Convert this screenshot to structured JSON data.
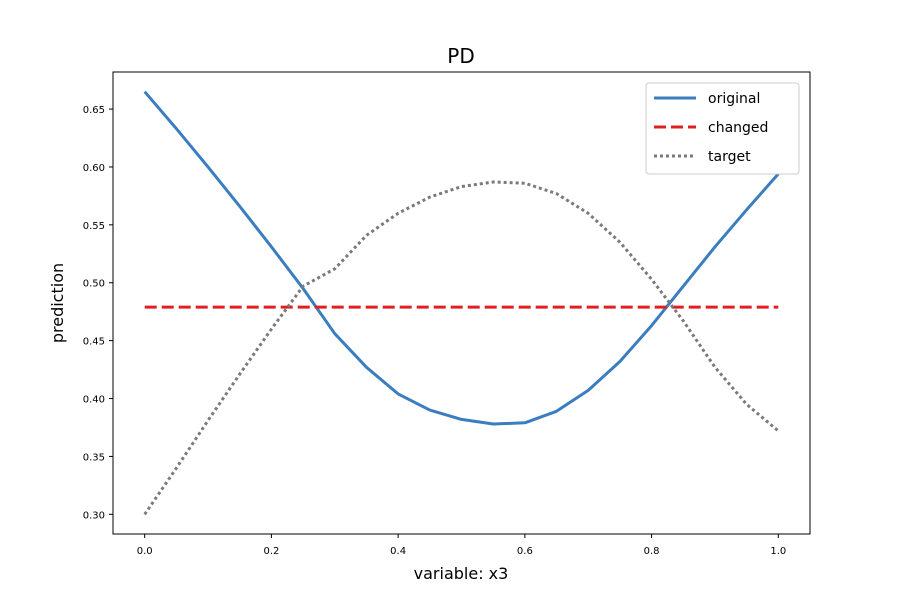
{
  "chart_data": {
    "type": "line",
    "title": "PD",
    "xlabel": "variable: x3",
    "ylabel": "prediction",
    "xlim": [
      -0.05,
      1.05
    ],
    "ylim": [
      0.283,
      0.682
    ],
    "xticks": [
      0.0,
      0.2,
      0.4,
      0.6,
      0.8,
      1.0
    ],
    "xtick_labels": [
      "0.0",
      "0.2",
      "0.4",
      "0.6",
      "0.8",
      "1.0"
    ],
    "yticks": [
      0.3,
      0.35,
      0.4,
      0.45,
      0.5,
      0.55,
      0.6,
      0.65
    ],
    "ytick_labels": [
      "0.30",
      "0.35",
      "0.40",
      "0.45",
      "0.50",
      "0.55",
      "0.60",
      "0.65"
    ],
    "grid": false,
    "legend_position": "top-right",
    "x": [
      0.0,
      0.05,
      0.1,
      0.15,
      0.2,
      0.25,
      0.3,
      0.35,
      0.4,
      0.45,
      0.5,
      0.55,
      0.6,
      0.65,
      0.7,
      0.75,
      0.8,
      0.85,
      0.9,
      0.95,
      1.0
    ],
    "series": [
      {
        "name": "original",
        "color": "#3a7ebf",
        "style": "solid",
        "values": [
          0.665,
          0.633,
          0.6,
          0.566,
          0.531,
          0.495,
          0.456,
          0.427,
          0.404,
          0.39,
          0.382,
          0.378,
          0.379,
          0.389,
          0.407,
          0.432,
          0.463,
          0.497,
          0.531,
          0.563,
          0.594
        ]
      },
      {
        "name": "changed",
        "color": "#e02020",
        "style": "dashed",
        "values": [
          0.479,
          0.479,
          0.479,
          0.479,
          0.479,
          0.479,
          0.479,
          0.479,
          0.479,
          0.479,
          0.479,
          0.479,
          0.479,
          0.479,
          0.479,
          0.479,
          0.479,
          0.479,
          0.479,
          0.479,
          0.479
        ]
      },
      {
        "name": "target",
        "color": "#7a7a7a",
        "style": "dotted",
        "values": [
          0.3,
          0.34,
          0.381,
          0.421,
          0.46,
          0.497,
          0.512,
          0.541,
          0.56,
          0.574,
          0.583,
          0.587,
          0.586,
          0.577,
          0.56,
          0.535,
          0.503,
          0.467,
          0.427,
          0.395,
          0.372
        ]
      }
    ]
  }
}
